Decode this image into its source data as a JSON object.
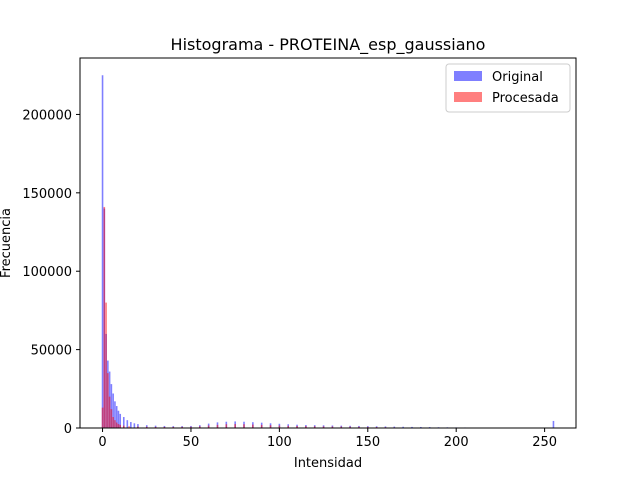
{
  "chart_data": {
    "type": "bar",
    "title": "Histograma - PROTEINA_esp_gaussiano",
    "xlabel": "Intensidad",
    "ylabel": "Frecuencia",
    "xlim": [
      -12.75,
      267.75
    ],
    "ylim": [
      0,
      236000
    ],
    "xticks": [
      0,
      50,
      100,
      150,
      200,
      250
    ],
    "yticks": [
      0,
      50000,
      100000,
      150000,
      200000
    ],
    "legend_position": "upper right",
    "grid": false,
    "series": [
      {
        "name": "Original",
        "color": "#0000ff",
        "alpha": 0.5,
        "bins": [
          [
            0,
            225000
          ],
          [
            1,
            140000
          ],
          [
            2,
            60000
          ],
          [
            3,
            43000
          ],
          [
            4,
            36000
          ],
          [
            5,
            28000
          ],
          [
            6,
            22000
          ],
          [
            7,
            17000
          ],
          [
            8,
            14000
          ],
          [
            9,
            11000
          ],
          [
            10,
            9000
          ],
          [
            12,
            7000
          ],
          [
            14,
            5000
          ],
          [
            16,
            3800
          ],
          [
            18,
            3000
          ],
          [
            20,
            2500
          ],
          [
            25,
            1800
          ],
          [
            30,
            1500
          ],
          [
            35,
            1300
          ],
          [
            40,
            1200
          ],
          [
            45,
            1200
          ],
          [
            50,
            1300
          ],
          [
            55,
            1800
          ],
          [
            60,
            2800
          ],
          [
            65,
            3600
          ],
          [
            70,
            4000
          ],
          [
            75,
            4200
          ],
          [
            80,
            4000
          ],
          [
            85,
            3700
          ],
          [
            90,
            3400
          ],
          [
            95,
            3000
          ],
          [
            100,
            2700
          ],
          [
            105,
            2400
          ],
          [
            110,
            2100
          ],
          [
            115,
            1900
          ],
          [
            120,
            1800
          ],
          [
            125,
            1700
          ],
          [
            130,
            1600
          ],
          [
            135,
            1500
          ],
          [
            140,
            1400
          ],
          [
            145,
            1300
          ],
          [
            150,
            1200
          ],
          [
            155,
            1100
          ],
          [
            160,
            1000
          ],
          [
            165,
            900
          ],
          [
            170,
            800
          ],
          [
            175,
            700
          ],
          [
            180,
            650
          ],
          [
            185,
            600
          ],
          [
            190,
            500
          ],
          [
            195,
            450
          ],
          [
            200,
            400
          ],
          [
            205,
            350
          ],
          [
            210,
            300
          ],
          [
            255,
            4500
          ]
        ]
      },
      {
        "name": "Procesada",
        "color": "#ff0000",
        "alpha": 0.5,
        "bins": [
          [
            0,
            13000
          ],
          [
            1,
            141000
          ],
          [
            2,
            80000
          ],
          [
            3,
            35000
          ],
          [
            4,
            20000
          ],
          [
            5,
            12000
          ],
          [
            6,
            7000
          ],
          [
            7,
            5000
          ],
          [
            8,
            3500
          ],
          [
            9,
            2500
          ],
          [
            10,
            2000
          ],
          [
            12,
            1500
          ],
          [
            15,
            1100
          ],
          [
            20,
            900
          ],
          [
            25,
            800
          ],
          [
            30,
            700
          ],
          [
            35,
            700
          ],
          [
            40,
            700
          ],
          [
            45,
            750
          ],
          [
            50,
            800
          ],
          [
            55,
            1100
          ],
          [
            60,
            1600
          ],
          [
            65,
            2000
          ],
          [
            70,
            2400
          ],
          [
            75,
            2500
          ],
          [
            80,
            2400
          ],
          [
            85,
            2200
          ],
          [
            90,
            2000
          ],
          [
            95,
            1800
          ],
          [
            100,
            1600
          ],
          [
            105,
            1400
          ],
          [
            110,
            1300
          ],
          [
            115,
            1200
          ],
          [
            120,
            1100
          ],
          [
            125,
            1000
          ],
          [
            130,
            950
          ],
          [
            135,
            900
          ],
          [
            140,
            850
          ],
          [
            145,
            800
          ],
          [
            150,
            700
          ],
          [
            155,
            600
          ],
          [
            160,
            500
          ],
          [
            165,
            400
          ],
          [
            170,
            300
          ],
          [
            175,
            200
          ]
        ]
      }
    ]
  }
}
